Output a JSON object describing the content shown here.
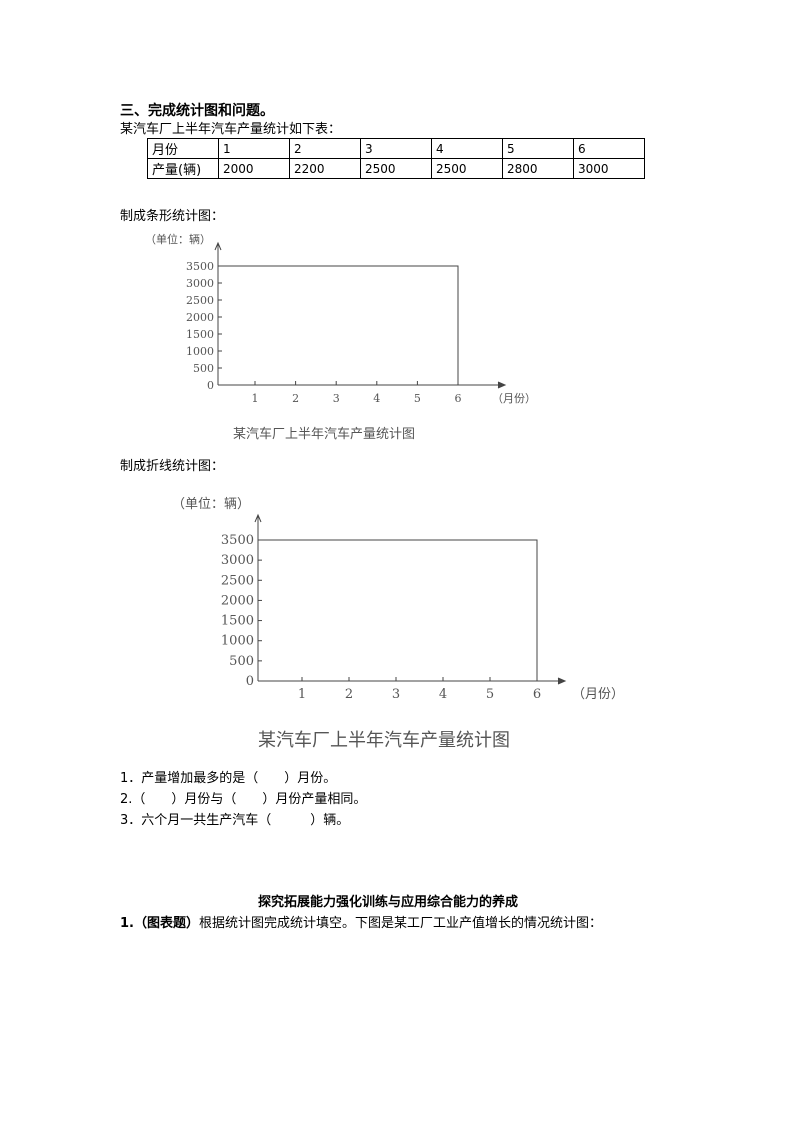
{
  "section_title": "三、完成统计图和问题。",
  "intro": "某汽车厂上半年汽车产量统计如下表：",
  "table": {
    "header": "月份",
    "row_label": "产量(辆)",
    "months": [
      "1",
      "2",
      "3",
      "4",
      "5",
      "6"
    ],
    "values": [
      "2000",
      "2200",
      "2500",
      "2500",
      "2800",
      "3000"
    ]
  },
  "bar_label": "制成条形统计图：",
  "line_label": "制成折线统计图：",
  "charts": [
    {
      "unit": "（单位：辆）",
      "xunit": "（月份）",
      "caption": "某汽车厂上半年汽车产量统计图",
      "yticks": [
        "0",
        "500",
        "1000",
        "1500",
        "2000",
        "2500",
        "3000",
        "3500"
      ],
      "xticks": [
        "1",
        "2",
        "3",
        "4",
        "5",
        "6"
      ]
    },
    {
      "unit": "（单位：辆）",
      "xunit": "（月份）",
      "caption": "某汽车厂上半年汽车产量统计图",
      "yticks": [
        "0",
        "500",
        "1000",
        "1500",
        "2000",
        "2500",
        "3000",
        "3500"
      ],
      "xticks": [
        "1",
        "2",
        "3",
        "4",
        "5",
        "6"
      ]
    }
  ],
  "questions": [
    "1．产量增加最多的是（　　）月份。",
    "2.（　　）月份与（　　）月份产量相同。",
    "3．六个月一共生产汽车（　　　）辆。"
  ],
  "section2_title": "探究拓展能力强化训练与应用综合能力的养成",
  "q2_prefix": "1.（图表题）",
  "q2_text": "根据统计图完成统计填空。下图是某工厂工业产值增长的情况统计图："
}
